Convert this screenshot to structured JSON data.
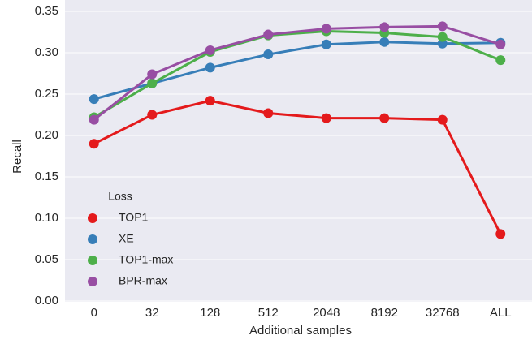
{
  "chart_data": {
    "type": "pointplot",
    "x_label": "Additional samples",
    "y_label": "Recall",
    "categories": [
      "0",
      "32",
      "128",
      "512",
      "2048",
      "8192",
      "32768",
      "ALL"
    ],
    "legend_title": "Loss",
    "legend_position": "lower left",
    "grid": true,
    "ylim": [
      0,
      0.35
    ],
    "yticks": [
      {
        "value": 0,
        "label": "0.00"
      },
      0.05,
      {
        "value": 0.1,
        "label": "0.10"
      },
      0.15,
      {
        "value": 0.2,
        "label": "0.20"
      },
      0.25,
      {
        "value": 0.3,
        "label": "0.30"
      },
      0.35
    ],
    "series": [
      {
        "name": "TOP1",
        "color": "#e41a1c",
        "values": [
          0.19,
          0.225,
          0.242,
          0.227,
          0.221,
          0.221,
          0.219,
          0.081
        ]
      },
      {
        "name": "XE",
        "color": "#377eb8",
        "values": [
          0.244,
          0.263,
          0.282,
          0.298,
          0.31,
          0.313,
          0.311,
          0.312
        ]
      },
      {
        "name": "TOP1-max",
        "color": "#4daf4a",
        "values": [
          0.222,
          0.263,
          0.301,
          0.321,
          0.326,
          0.324,
          0.319,
          0.291
        ]
      },
      {
        "name": "BPR-max",
        "color": "#984ea3",
        "values": [
          0.219,
          0.274,
          0.303,
          0.322,
          0.329,
          0.331,
          0.332,
          0.31
        ]
      }
    ]
  }
}
